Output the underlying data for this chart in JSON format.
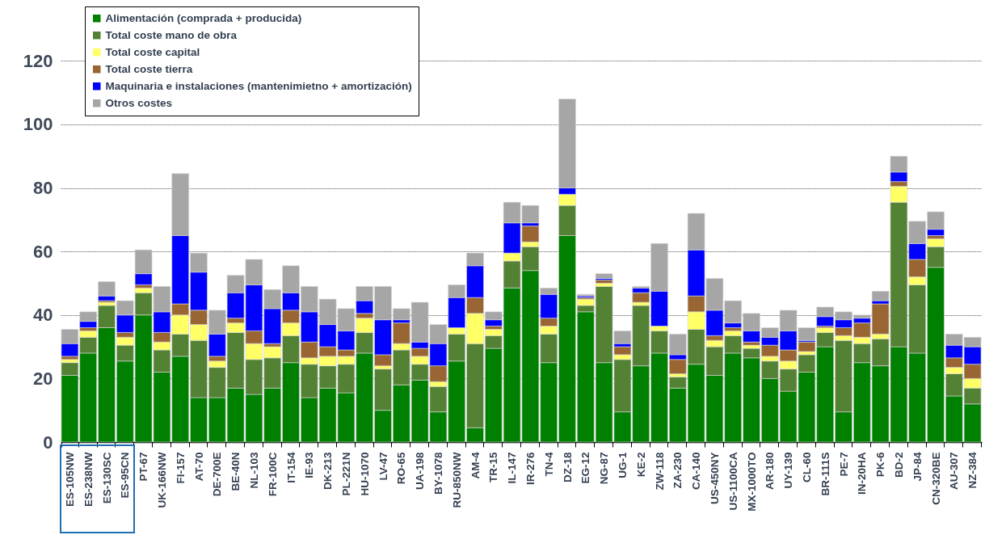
{
  "chart_data": {
    "type": "bar",
    "stacked": true,
    "legend": "top left",
    "grid": "y",
    "ylim": [
      0,
      130
    ],
    "yticks": [
      0,
      20,
      40,
      60,
      80,
      100,
      120
    ],
    "categories": [
      "ES-105NW",
      "ES-238NW",
      "ES-130SC",
      "ES-95CN",
      "PT-67",
      "UK-166NW",
      "FI-157",
      "AT-70",
      "DE-700E",
      "BE-40N",
      "NL-103",
      "FR-100C",
      "IT-154",
      "IE-93",
      "DK-213",
      "PL-221N",
      "HU-1070",
      "LV-47",
      "RO-65",
      "UA-198",
      "BY-1078",
      "RU-850NW",
      "AM-4",
      "TR-15",
      "IL-147",
      "IR-276",
      "TN-4",
      "DZ-18",
      "EG-12",
      "NG-87",
      "UG-1",
      "KE-2",
      "ZW-118",
      "ZA-230",
      "CA-140",
      "US-450NY",
      "US-1100CA",
      "MX-1000TO",
      "AR-180",
      "UY-139",
      "CL-60",
      "BR-111S",
      "PE-7",
      "IN-20HA",
      "PK-6",
      "BD-2",
      "JP-84",
      "CN-320BE",
      "AU-307",
      "NZ-384"
    ],
    "series": [
      {
        "name": "Alimentación (comprada + producida)",
        "color": "#008000",
        "values": [
          21,
          28,
          36,
          25.5,
          40,
          22,
          27,
          14,
          14,
          17,
          15,
          17,
          25,
          14,
          17,
          15.5,
          28,
          10,
          18,
          19.5,
          9.5,
          25.5,
          4.5,
          29.5,
          48.5,
          54,
          25,
          65,
          41,
          25,
          9.5,
          24,
          28,
          17,
          24.5,
          21,
          28,
          26.5,
          20,
          16,
          22,
          30,
          9.5,
          25,
          24,
          30,
          28,
          55,
          14.5,
          12
        ]
      },
      {
        "name": "Total coste mano de obra",
        "color": "#548235",
        "values": [
          4,
          5,
          7,
          5,
          7,
          7,
          7,
          18,
          9.5,
          17.5,
          11,
          9.5,
          8.5,
          10.5,
          7,
          9,
          6.5,
          13,
          11,
          5,
          8,
          8.5,
          26.5,
          4,
          8.5,
          7.5,
          9,
          9.5,
          2,
          24,
          16.5,
          19,
          7,
          3.5,
          11,
          9,
          5.5,
          3,
          5.5,
          7,
          5.5,
          4.5,
          22.5,
          6,
          8.5,
          45.5,
          21.5,
          6.5,
          7,
          5
        ]
      },
      {
        "name": "Total coste capital",
        "color": "#ffff66",
        "values": [
          1,
          2,
          1,
          2.5,
          1.5,
          2.5,
          6,
          5,
          2,
          3,
          5,
          3.5,
          4,
          2,
          3,
          2.5,
          4.5,
          1,
          2,
          2.5,
          1.5,
          2,
          9.5,
          2,
          2.5,
          1.5,
          2.5,
          3.5,
          2,
          1,
          1.5,
          1,
          1.5,
          1,
          5.5,
          2,
          1.5,
          1,
          1.5,
          2.5,
          1,
          1.5,
          1.5,
          2,
          1.5,
          5,
          2.5,
          2.5,
          2,
          3
        ]
      },
      {
        "name": "Total coste tierra",
        "color": "#996633",
        "values": [
          1,
          1,
          0.5,
          1.5,
          1,
          3,
          3.5,
          4.5,
          1.5,
          1.5,
          4,
          1,
          4,
          5,
          3,
          2,
          1.5,
          3.5,
          6.5,
          2.5,
          5,
          0,
          5,
          1,
          0,
          5,
          2.5,
          0,
          0.5,
          1,
          2.5,
          3,
          0,
          4.5,
          5,
          1.5,
          1,
          1,
          3.5,
          3.5,
          3,
          0.5,
          2.5,
          4.5,
          9.5,
          1.5,
          5.5,
          1,
          3,
          4.5
        ]
      },
      {
        "name": "Maquinaria e instalaciones (mantenimietno + amortización)",
        "color": "#0000ff",
        "values": [
          4,
          2,
          1.5,
          5.5,
          3.5,
          6.5,
          21.5,
          12,
          7,
          8,
          14.5,
          11,
          5.5,
          9.5,
          7,
          6,
          4,
          11,
          1,
          2,
          7,
          9.5,
          10,
          2,
          9.5,
          1,
          7.5,
          2,
          0.5,
          0.5,
          1,
          1.5,
          11,
          1.5,
          14.5,
          8,
          1.5,
          3.5,
          2.5,
          6,
          0.5,
          3,
          2.5,
          1.5,
          1,
          3,
          5,
          2,
          4,
          5.5
        ]
      },
      {
        "name": "Otros costes",
        "color": "#a6a6a6",
        "values": [
          4.5,
          3,
          4.5,
          4.5,
          7.5,
          8,
          19.5,
          6,
          7.5,
          5.5,
          8,
          6,
          8.5,
          8,
          8,
          7,
          4.5,
          10.5,
          3.5,
          12.5,
          6,
          4,
          4,
          2.5,
          6.5,
          5.5,
          2,
          28,
          0.5,
          1.5,
          4,
          0.5,
          15,
          6.5,
          11.5,
          10,
          7,
          5.5,
          3,
          6.5,
          4,
          3,
          2.5,
          1,
          3,
          5,
          7,
          5.5,
          3.5,
          3
        ]
      }
    ]
  }
}
